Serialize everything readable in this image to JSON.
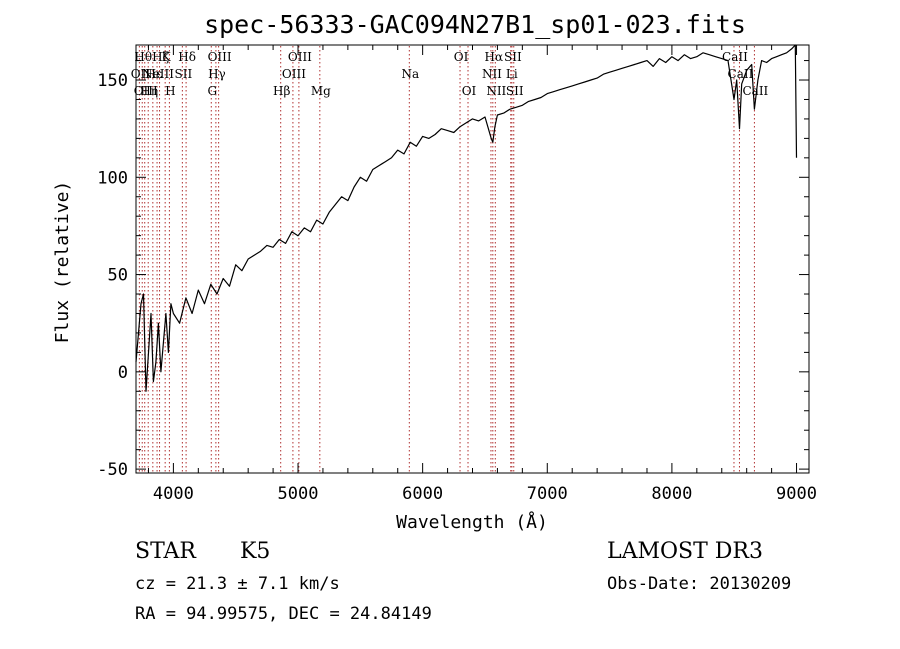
{
  "chart_data": {
    "type": "line",
    "title": "spec-56333-GAC094N27B1_sp01-023.fits",
    "xlabel": "Wavelength (Å)",
    "ylabel": "Flux (relative)",
    "xlim": [
      3700,
      9100
    ],
    "ylim": [
      -52,
      168
    ],
    "x_ticks": [
      4000,
      5000,
      6000,
      7000,
      8000,
      9000
    ],
    "y_ticks": [
      -50,
      0,
      50,
      100,
      150
    ],
    "grid": false,
    "series": [
      {
        "name": "flux",
        "color": "#000000",
        "x": [
          3700,
          3720,
          3740,
          3760,
          3780,
          3800,
          3820,
          3840,
          3860,
          3880,
          3900,
          3920,
          3940,
          3960,
          3980,
          4000,
          4050,
          4100,
          4150,
          4200,
          4250,
          4300,
          4350,
          4400,
          4450,
          4500,
          4550,
          4600,
          4650,
          4700,
          4750,
          4800,
          4850,
          4900,
          4950,
          5000,
          5050,
          5100,
          5150,
          5200,
          5250,
          5300,
          5350,
          5400,
          5450,
          5500,
          5550,
          5600,
          5650,
          5700,
          5750,
          5800,
          5850,
          5900,
          5950,
          6000,
          6050,
          6100,
          6150,
          6200,
          6250,
          6300,
          6350,
          6400,
          6450,
          6500,
          6550,
          6563,
          6580,
          6600,
          6650,
          6700,
          6750,
          6800,
          6850,
          6900,
          6950,
          7000,
          7050,
          7100,
          7150,
          7200,
          7250,
          7300,
          7350,
          7400,
          7450,
          7500,
          7550,
          7600,
          7650,
          7700,
          7750,
          7800,
          7850,
          7900,
          7950,
          8000,
          8050,
          8100,
          8150,
          8200,
          8250,
          8300,
          8350,
          8400,
          8450,
          8498,
          8520,
          8542,
          8560,
          8600,
          8640,
          8662,
          8690,
          8720,
          8760,
          8800,
          8840,
          8880,
          8920,
          8960,
          8990,
          9000
        ],
        "y": [
          5,
          20,
          35,
          40,
          -10,
          10,
          30,
          -5,
          5,
          25,
          0,
          15,
          30,
          10,
          35,
          30,
          25,
          38,
          30,
          42,
          35,
          45,
          40,
          48,
          44,
          55,
          52,
          58,
          60,
          62,
          65,
          64,
          68,
          66,
          72,
          70,
          74,
          72,
          78,
          76,
          82,
          86,
          90,
          88,
          95,
          100,
          98,
          104,
          106,
          108,
          110,
          114,
          112,
          118,
          116,
          121,
          120,
          122,
          125,
          124,
          123,
          126,
          128,
          130,
          129,
          131,
          120,
          118,
          126,
          132,
          133,
          135,
          136,
          137,
          139,
          140,
          141,
          143,
          144,
          145,
          146,
          147,
          148,
          149,
          150,
          151,
          153,
          154,
          155,
          156,
          157,
          158,
          159,
          160,
          157,
          161,
          159,
          162,
          160,
          163,
          161,
          162,
          164,
          163,
          162,
          161,
          160,
          140,
          150,
          125,
          148,
          155,
          158,
          135,
          150,
          160,
          159,
          161,
          162,
          163,
          164,
          166,
          168,
          110
        ]
      }
    ],
    "spectral_lines": [
      {
        "wave": 3727,
        "label": "OII",
        "row": 1
      },
      {
        "wave": 3750,
        "label": "Hθ",
        "row": 0
      },
      {
        "wave": 3770,
        "label": "OIII",
        "row": 2
      },
      {
        "wave": 3798,
        "label": "Hη",
        "row": 2
      },
      {
        "wave": 3835,
        "label": "Hε",
        "row": 1
      },
      {
        "wave": 3869,
        "label": "NeIII",
        "row": 1
      },
      {
        "wave": 3889,
        "label": "Hζ",
        "row": 0
      },
      {
        "wave": 3934,
        "label": "K",
        "row": 0
      },
      {
        "wave": 3968,
        "label": "H",
        "row": 2
      },
      {
        "wave": 4072,
        "label": "SII",
        "row": 1
      },
      {
        "wave": 4102,
        "label": "Hδ",
        "row": 0
      },
      {
        "wave": 4304,
        "label": "G",
        "row": 2
      },
      {
        "wave": 4341,
        "label": "Hγ",
        "row": 1
      },
      {
        "wave": 4363,
        "label": "OIII",
        "row": 0
      },
      {
        "wave": 4861,
        "label": "Hβ",
        "row": 2
      },
      {
        "wave": 4959,
        "label": "OIII",
        "row": 1
      },
      {
        "wave": 5007,
        "label": "OIII",
        "row": 0
      },
      {
        "wave": 5175,
        "label": "Mg",
        "row": 2
      },
      {
        "wave": 5893,
        "label": "Na",
        "row": 1
      },
      {
        "wave": 6300,
        "label": "OI",
        "row": 0
      },
      {
        "wave": 6364,
        "label": "OI",
        "row": 2
      },
      {
        "wave": 6548,
        "label": "NII",
        "row": 1
      },
      {
        "wave": 6563,
        "label": "Hα",
        "row": 0
      },
      {
        "wave": 6583,
        "label": "NII",
        "row": 2
      },
      {
        "wave": 6707,
        "label": "Li",
        "row": 1
      },
      {
        "wave": 6716,
        "label": "SII",
        "row": 0
      },
      {
        "wave": 6731,
        "label": "SII",
        "row": 2
      },
      {
        "wave": 8498,
        "label": "CaII",
        "row": 0
      },
      {
        "wave": 8542,
        "label": "CaII",
        "row": 1
      },
      {
        "wave": 8662,
        "label": "CaII",
        "row": 2
      }
    ]
  },
  "info": {
    "object_class": "STAR",
    "subclass": "K5",
    "redshift": "cz = 21.3 ± 7.1 km/s",
    "coords": "RA =  94.99575, DEC =  24.84149",
    "survey": "LAMOST DR3",
    "obs_date": "Obs-Date: 20130209"
  }
}
